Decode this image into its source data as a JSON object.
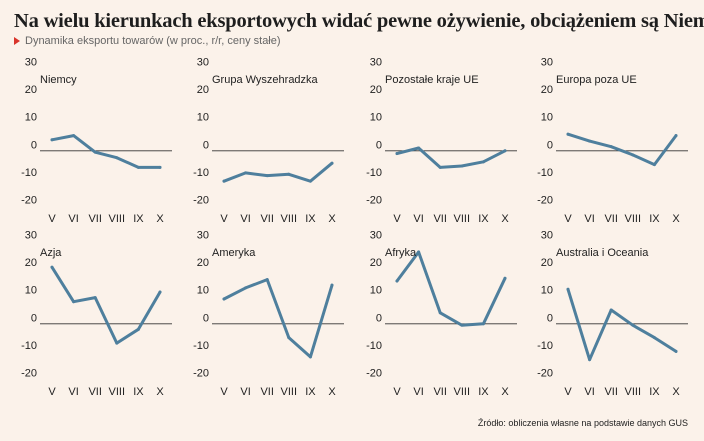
{
  "title": "Na wielu kierunkach eksportowych widać pewne ożywienie, obciążeniem są Niemcy",
  "subtitle": "Dynamika eksportu towarów (w proc., r/r, ceny stałe)",
  "source": "Źródło: obliczenia własne na podstawie danych GUS",
  "colors": {
    "line": "#4e7f9d",
    "axis": "#333333",
    "background": "#fbf2ea",
    "accent": "#d9342b"
  },
  "chart_data": [
    {
      "type": "line",
      "title": "Niemcy",
      "categories": [
        "V",
        "VI",
        "VII",
        "VIII",
        "IX",
        "X"
      ],
      "yticks": [
        30,
        20,
        10,
        0,
        -10,
        -20
      ],
      "ylim": [
        -20,
        30
      ],
      "grid": false,
      "values": [
        4,
        5.5,
        -0.5,
        -2.5,
        -6,
        -6
      ]
    },
    {
      "type": "line",
      "title": "Grupa Wyszehradzka",
      "categories": [
        "V",
        "VI",
        "VII",
        "VIII",
        "IX",
        "X"
      ],
      "yticks": [
        30,
        20,
        10,
        0,
        -10,
        -20
      ],
      "ylim": [
        -20,
        30
      ],
      "grid": false,
      "values": [
        -11,
        -8,
        -9,
        -8.5,
        -11,
        -4.5
      ]
    },
    {
      "type": "line",
      "title": "Pozostałe kraje UE",
      "categories": [
        "V",
        "VI",
        "VII",
        "VIII",
        "IX",
        "X"
      ],
      "yticks": [
        30,
        20,
        10,
        0,
        -10,
        -20
      ],
      "ylim": [
        -20,
        30
      ],
      "grid": false,
      "values": [
        -1,
        1,
        -6,
        -5.5,
        -4,
        0
      ]
    },
    {
      "type": "line",
      "title": "Europa poza UE",
      "categories": [
        "V",
        "VI",
        "VII",
        "VIII",
        "IX",
        "X"
      ],
      "yticks": [
        30,
        20,
        10,
        0,
        -10,
        -20
      ],
      "ylim": [
        -20,
        30
      ],
      "grid": false,
      "values": [
        6,
        3.5,
        1.5,
        -1.5,
        -5,
        5.5
      ]
    },
    {
      "type": "line",
      "title": "Azja",
      "categories": [
        "V",
        "VI",
        "VII",
        "VIII",
        "IX",
        "X"
      ],
      "yticks": [
        30,
        20,
        10,
        0,
        -10,
        -20
      ],
      "ylim": [
        -20,
        30
      ],
      "grid": false,
      "values": [
        20.5,
        8,
        9.5,
        -7,
        -2,
        11.5
      ]
    },
    {
      "type": "line",
      "title": "Ameryka",
      "categories": [
        "V",
        "VI",
        "VII",
        "VIII",
        "IX",
        "X"
      ],
      "yticks": [
        30,
        20,
        10,
        0,
        -10,
        -20
      ],
      "ylim": [
        -20,
        30
      ],
      "grid": false,
      "values": [
        9,
        13,
        16,
        -5,
        -12,
        14
      ]
    },
    {
      "type": "line",
      "title": "Afryka",
      "categories": [
        "V",
        "VI",
        "VII",
        "VIII",
        "IX",
        "X"
      ],
      "yticks": [
        30,
        20,
        10,
        0,
        -10,
        -20
      ],
      "ylim": [
        -20,
        30
      ],
      "grid": false,
      "values": [
        15.5,
        26,
        4,
        -0.5,
        0,
        16.5
      ]
    },
    {
      "type": "line",
      "title": "Australia i Oceania",
      "categories": [
        "V",
        "VI",
        "VII",
        "VIII",
        "IX",
        "X"
      ],
      "yticks": [
        30,
        20,
        10,
        0,
        -10,
        -20
      ],
      "ylim": [
        -20,
        30
      ],
      "grid": false,
      "values": [
        12.5,
        -13,
        5,
        -0.5,
        -5,
        -10
      ]
    }
  ]
}
